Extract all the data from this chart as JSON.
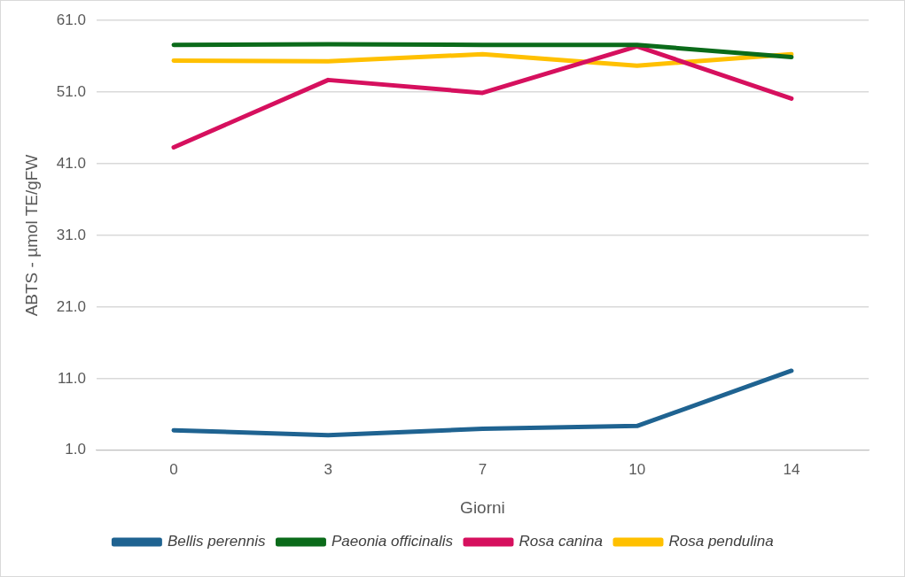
{
  "chart_data": {
    "type": "line",
    "xlabel": "Giorni",
    "ylabel": "ABTS - µmol TE/gFW",
    "categories": [
      "0",
      "3",
      "7",
      "10",
      "14"
    ],
    "series": [
      {
        "name": "Bellis perennis",
        "color": "#1f6391",
        "values": [
          3.8,
          3.1,
          4.0,
          4.4,
          12.1
        ]
      },
      {
        "name": "Paeonia officinalis",
        "color": "#0b6b1a",
        "values": [
          57.6,
          57.7,
          57.6,
          57.6,
          55.9
        ]
      },
      {
        "name": "Rosa canina",
        "color": "#d6105e",
        "values": [
          43.3,
          52.7,
          50.9,
          57.4,
          50.1
        ]
      },
      {
        "name": "Rosa pendulina",
        "color": "#ffc000",
        "values": [
          55.4,
          55.3,
          56.3,
          54.7,
          56.3
        ]
      }
    ],
    "ylim": [
      1,
      61
    ],
    "yticks": [
      {
        "value": 1,
        "label": "1.0"
      },
      {
        "value": 11,
        "label": "11.0"
      },
      {
        "value": 21,
        "label": "21.0"
      },
      {
        "value": 31,
        "label": "31.0"
      },
      {
        "value": 41,
        "label": "41.0"
      },
      {
        "value": 51,
        "label": "51.0"
      },
      {
        "value": 61,
        "label": "61.0"
      }
    ],
    "grid": "y",
    "legend": "bottom",
    "marker": "none",
    "line_style": "solid"
  }
}
